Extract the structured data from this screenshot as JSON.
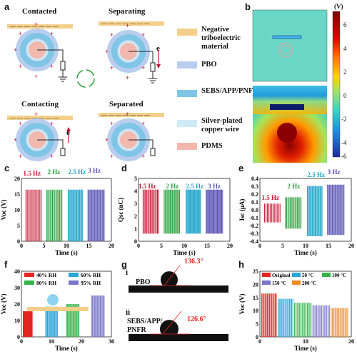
{
  "panels": {
    "a": "a",
    "b": "b",
    "c": "c",
    "d": "d",
    "e": "e",
    "f": "f",
    "g": "g",
    "h": "h"
  },
  "schematic": {
    "states": [
      "Contacted",
      "Separating",
      "Contacting",
      "Separated"
    ],
    "electron_label": "e",
    "charge_pos": "+",
    "charge_neg": "−"
  },
  "legend_a": [
    {
      "label": "Negative triboelectric material",
      "color": "#f3cf8a"
    },
    {
      "label": "PBO",
      "color": "#b9cdef"
    },
    {
      "label": "SEBS/APP/PNFR",
      "color": "#7fc6e6"
    },
    {
      "label": "Silver-plated copper wire",
      "color": "#cfe9f5"
    },
    {
      "label": "PDMS",
      "color": "#f2b8ad"
    }
  ],
  "colorbar": {
    "unit": "(V)",
    "ticks": [
      "6",
      "4",
      "2",
      "0",
      "-2",
      "-4",
      "-6"
    ],
    "colors": [
      "#7a0000",
      "#d40000",
      "#ff6a00",
      "#ffd000",
      "#a8e35a",
      "#3fd1c4",
      "#1f8fe0",
      "#1d2a9c"
    ]
  },
  "voltage_plot": {
    "ylabel": "Voc (V)",
    "xlabel": "Time (s)",
    "xticks": [
      "0",
      "5",
      "10",
      "15",
      "20"
    ],
    "yticks": [
      "0",
      "5",
      "10",
      "15",
      "20"
    ],
    "freq_labels": [
      {
        "text": "1.5 Hz",
        "color": "#c8102e"
      },
      {
        "text": "2 Hz",
        "color": "#2a9d3a"
      },
      {
        "text": "2.5 Hz",
        "color": "#1aa3c9"
      },
      {
        "text": "3 Hz",
        "color": "#5b53b5"
      }
    ]
  },
  "charge_plot": {
    "ylabel": "Qsc (nC)",
    "xlabel": "Time (s)",
    "xticks": [
      "0",
      "5",
      "10",
      "15",
      "20"
    ],
    "yticks": [
      "0",
      "1",
      "2",
      "3",
      "4",
      "5"
    ],
    "freq_labels": [
      {
        "text": "1.5 Hz",
        "color": "#c8102e"
      },
      {
        "text": "2 Hz",
        "color": "#2a9d3a"
      },
      {
        "text": "2.5 Hz",
        "color": "#1aa3c9"
      },
      {
        "text": "3 Hz",
        "color": "#5b53b5"
      }
    ]
  },
  "current_plot": {
    "ylabel": "Isc (μA)",
    "xlabel": "Time (s)",
    "xticks": [
      "0",
      "5",
      "10",
      "15",
      "20"
    ],
    "yticks": [
      "-0.4",
      "-0.3",
      "-0.2",
      "-0.1",
      "0.0",
      "0.1",
      "0.2",
      "0.3",
      "0.4"
    ],
    "freq_labels": [
      {
        "text": "1.5 Hz",
        "color": "#c8102e"
      },
      {
        "text": "2 Hz",
        "color": "#2a9d3a"
      },
      {
        "text": "2.5 Hz",
        "color": "#1aa3c9"
      },
      {
        "text": "3 Hz",
        "color": "#5b53b5"
      }
    ]
  },
  "humidity_plot": {
    "ylabel": "Voc (V)",
    "xlabel": "Time (s)",
    "xticks": [
      "0",
      "10",
      "20",
      "30"
    ],
    "yticks": [
      "0",
      "10",
      "20",
      "30",
      "40"
    ],
    "legend": [
      {
        "text": "40% RH",
        "color": "#e52521"
      },
      {
        "text": "60% RH",
        "color": "#2aa6d8"
      },
      {
        "text": "80% RH",
        "color": "#33b24a"
      },
      {
        "text": "95% RH",
        "color": "#7a75c9"
      }
    ]
  },
  "contact_angle": {
    "rows": [
      {
        "roman": "i",
        "material": "PBO",
        "angle": "136.3°"
      },
      {
        "roman": "ii",
        "material": "SEBS/APP/\nPNFR",
        "angle": "126.6°"
      }
    ]
  },
  "temperature_plot": {
    "ylabel": "Voc (V)",
    "xlabel": "Time (s)",
    "xticks": [
      "0",
      "10",
      "20"
    ],
    "yticks": [
      "0",
      "5",
      "10",
      "15",
      "20",
      "25"
    ],
    "legend": [
      {
        "text": "Original",
        "color": "#e52521"
      },
      {
        "text": "50 °C",
        "color": "#2aa6d8"
      },
      {
        "text": "100 °C",
        "color": "#33b24a"
      },
      {
        "text": "150 °C",
        "color": "#7a75c9"
      },
      {
        "text": "200 °C",
        "color": "#f08a24"
      }
    ]
  }
}
